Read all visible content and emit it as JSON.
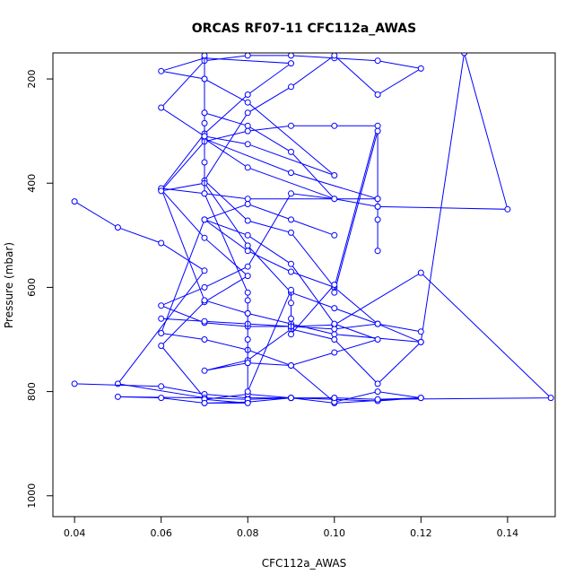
{
  "chart_data": {
    "type": "line",
    "title": "ORCAS RF07-11 CFC112a_AWAS",
    "xlabel": "CFC112a_AWAS",
    "ylabel": "Pressure (mbar)",
    "xlim": [
      0.035,
      0.151
    ],
    "ylim": [
      1040,
      150
    ],
    "y_reversed": true,
    "x_ticks": [
      0.04,
      0.06,
      0.08,
      0.1,
      0.12,
      0.14
    ],
    "x_tick_labels": [
      "0.04",
      "0.06",
      "0.08",
      "0.10",
      "0.12",
      "0.14"
    ],
    "y_ticks": [
      200,
      400,
      600,
      800,
      1000
    ],
    "y_tick_labels": [
      "200",
      "400",
      "600",
      "800",
      "1000"
    ],
    "grid": false,
    "series_color": "#0000ff",
    "marker": "open-circle",
    "series": [
      {
        "x": [
          0.04,
          0.05,
          0.06,
          0.07,
          0.05,
          0.07,
          0.06,
          0.07,
          0.08,
          0.07,
          0.06,
          0.07,
          0.08,
          0.09,
          0.07,
          0.06,
          0.07,
          0.08,
          0.1,
          0.08,
          0.07,
          0.06,
          0.07,
          0.08,
          0.09,
          0.1,
          0.11,
          0.12,
          0.11,
          0.1,
          0.09,
          0.08,
          0.07,
          0.08,
          0.09,
          0.1,
          0.11,
          0.12,
          0.1,
          0.09,
          0.08,
          0.07,
          0.06,
          0.07,
          0.08,
          0.11,
          0.09,
          0.07,
          0.08,
          0.1,
          0.09,
          0.08,
          0.07
        ],
        "y": [
          435,
          485,
          515,
          568,
          785,
          812,
          712,
          628,
          578,
          505,
          412,
          305,
          230,
          170,
          160,
          185,
          200,
          245,
          385,
          325,
          310,
          255,
          165,
          155,
          155,
          160,
          165,
          180,
          230,
          155,
          215,
          265,
          395,
          472,
          495,
          600,
          670,
          705,
          690,
          670,
          650,
          625,
          410,
          420,
          430,
          430,
          380,
          315,
          370,
          430,
          340,
          290,
          265
        ]
      },
      {
        "x": [
          0.04,
          0.06,
          0.07,
          0.08,
          0.09,
          0.1,
          0.11,
          0.12,
          0.1,
          0.09,
          0.08,
          0.07,
          0.06,
          0.05,
          0.07,
          0.08,
          0.09,
          0.1,
          0.11,
          0.12,
          0.11,
          0.1,
          0.09,
          0.08,
          0.07,
          0.08,
          0.09,
          0.1,
          0.11,
          0.12,
          0.13,
          0.14,
          0.11,
          0.1,
          0.09,
          0.08,
          0.07,
          0.06,
          0.07,
          0.08,
          0.09,
          0.1,
          0.12,
          0.15,
          0.11,
          0.1,
          0.09,
          0.08,
          0.07,
          0.08,
          0.07
        ],
        "y": [
          785,
          790,
          805,
          812,
          812,
          815,
          818,
          812,
          822,
          812,
          820,
          822,
          812,
          810,
          812,
          815,
          812,
          812,
          815,
          812,
          800,
          820,
          750,
          745,
          760,
          740,
          680,
          700,
          785,
          705,
          150,
          450,
          445,
          430,
          420,
          560,
          600,
          635,
          668,
          675,
          675,
          672,
          572,
          812,
          815,
          812,
          812,
          805,
          815,
          822,
          822
        ]
      },
      {
        "x": [
          0.06,
          0.07,
          0.08,
          0.09,
          0.1,
          0.11,
          0.12,
          0.11,
          0.1,
          0.09,
          0.08,
          0.07,
          0.06,
          0.07,
          0.08,
          0.09,
          0.1,
          0.11,
          0.1,
          0.09,
          0.08,
          0.07,
          0.06,
          0.07,
          0.08,
          0.09,
          0.1,
          0.11,
          0.1,
          0.09,
          0.08,
          0.07,
          0.08,
          0.09,
          0.1
        ],
        "y": [
          660,
          665,
          670,
          675,
          680,
          670,
          685,
          670,
          640,
          610,
          520,
          400,
          415,
          320,
          300,
          290,
          290,
          290,
          600,
          570,
          530,
          470,
          688,
          700,
          720,
          750,
          725,
          700,
          670,
          555,
          500,
          470,
          440,
          470,
          500
        ]
      },
      {
        "x": [
          0.07,
          0.07,
          0.07,
          0.07,
          0.07,
          0.07,
          0.07,
          0.08,
          0.08,
          0.08,
          0.08,
          0.08,
          0.08,
          0.09,
          0.09,
          0.09,
          0.09,
          0.1,
          0.1,
          0.11,
          0.11,
          0.11,
          0.11,
          0.11
        ],
        "y": [
          155,
          200,
          265,
          285,
          310,
          360,
          420,
          610,
          625,
          650,
          700,
          745,
          800,
          605,
          630,
          660,
          690,
          595,
          610,
          300,
          430,
          445,
          470,
          530
        ]
      }
    ]
  }
}
